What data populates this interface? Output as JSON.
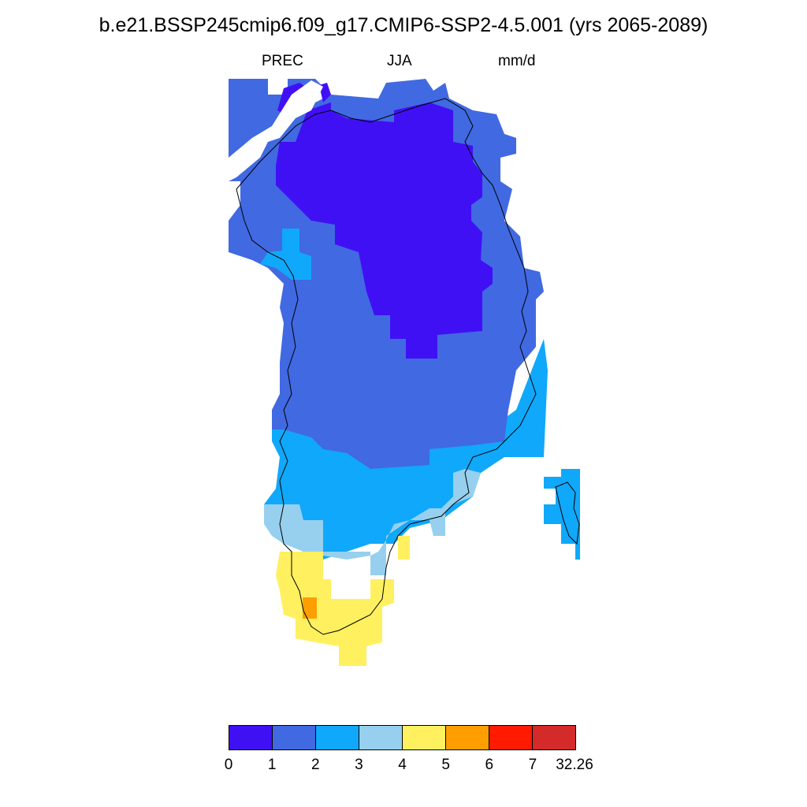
{
  "title": "b.e21.BSSP245cmip6.f09_g17.CMIP6-SSP2-4.5.001 (yrs 2065-2089)",
  "subtitles": {
    "variable": "PREC",
    "season": "JJA",
    "units": "mm/d"
  },
  "colorbar": {
    "bins": [
      {
        "color": "#4010f5"
      },
      {
        "color": "#4169e1"
      },
      {
        "color": "#10a8fa"
      },
      {
        "color": "#96d0ee"
      },
      {
        "color": "#fff060"
      },
      {
        "color": "#ff9e00"
      },
      {
        "color": "#ff1a00"
      },
      {
        "color": "#d42a2a"
      }
    ],
    "labels": [
      "0",
      "1",
      "2",
      "3",
      "4",
      "5",
      "6",
      "7",
      "32.26"
    ]
  },
  "map": {
    "region": "Greenland",
    "coastline": true
  }
}
